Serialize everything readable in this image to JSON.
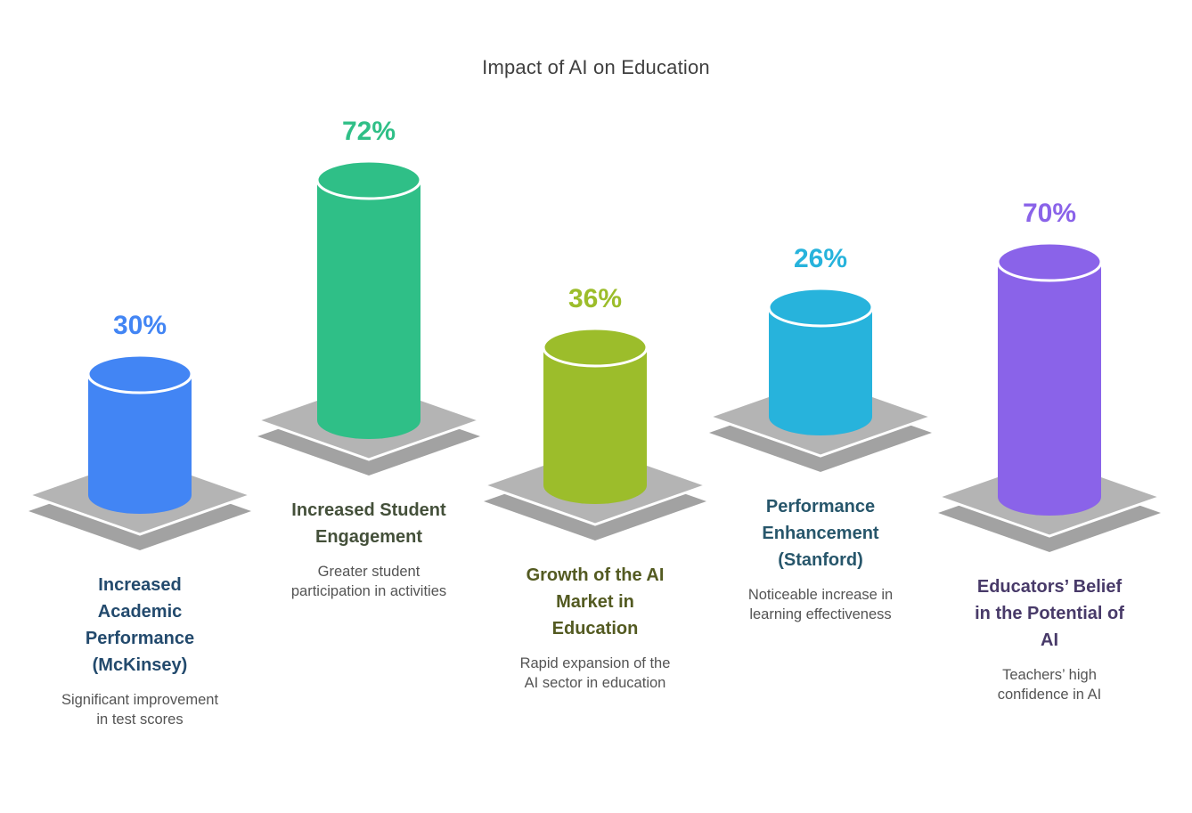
{
  "title": "Impact of AI on Education",
  "chart_data": {
    "type": "bar",
    "title": "Impact of AI on Education",
    "unit": "%",
    "ylim": [
      0,
      100
    ],
    "legend": false,
    "style_note": "pictorial 3D cylinder bars standing on gray isometric platforms",
    "bars": [
      {
        "category": "Increased Academic Performance (McKinsey)",
        "title": "Increased\nAcademic\nPerformance\n(McKinsey)",
        "value": 30,
        "value_label": "30%",
        "color": "#4285f4",
        "label_color": "#234a6d",
        "description": "Significant improvement\nin test scores"
      },
      {
        "category": "Increased Student Engagement",
        "title": "Increased Student\nEngagement",
        "value": 72,
        "value_label": "72%",
        "color": "#2fbf87",
        "label_color": "#44503a",
        "description": "Greater student\nparticipation in activities"
      },
      {
        "category": "Growth of the AI Market in Education",
        "title": "Growth of the AI\nMarket in\nEducation",
        "value": 36,
        "value_label": "36%",
        "color": "#9cbd2b",
        "label_color": "#535a21",
        "description": "Rapid expansion of the\nAI sector in education"
      },
      {
        "category": "Performance Enhancement (Stanford)",
        "title": "Performance\nEnhancement\n(Stanford)",
        "value": 26,
        "value_label": "26%",
        "color": "#27b3dc",
        "label_color": "#27566b",
        "description": "Noticeable increase in\nlearning effectiveness"
      },
      {
        "category": "Educators’ Belief in the Potential of AI",
        "title": "Educators’ Belief\nin the Potential of\nAI",
        "value": 70,
        "value_label": "70%",
        "color": "#8a63e9",
        "label_color": "#483a69",
        "description": "Teachers’ high\nconfidence in AI"
      }
    ]
  },
  "style": {
    "background": "#ffffff",
    "title_color": "#3f3f3f",
    "description_color": "#545454",
    "platform_top": "#b4b4b4",
    "platform_side": "#a2a2a2",
    "cylinder_stroke": "#ffffff"
  }
}
